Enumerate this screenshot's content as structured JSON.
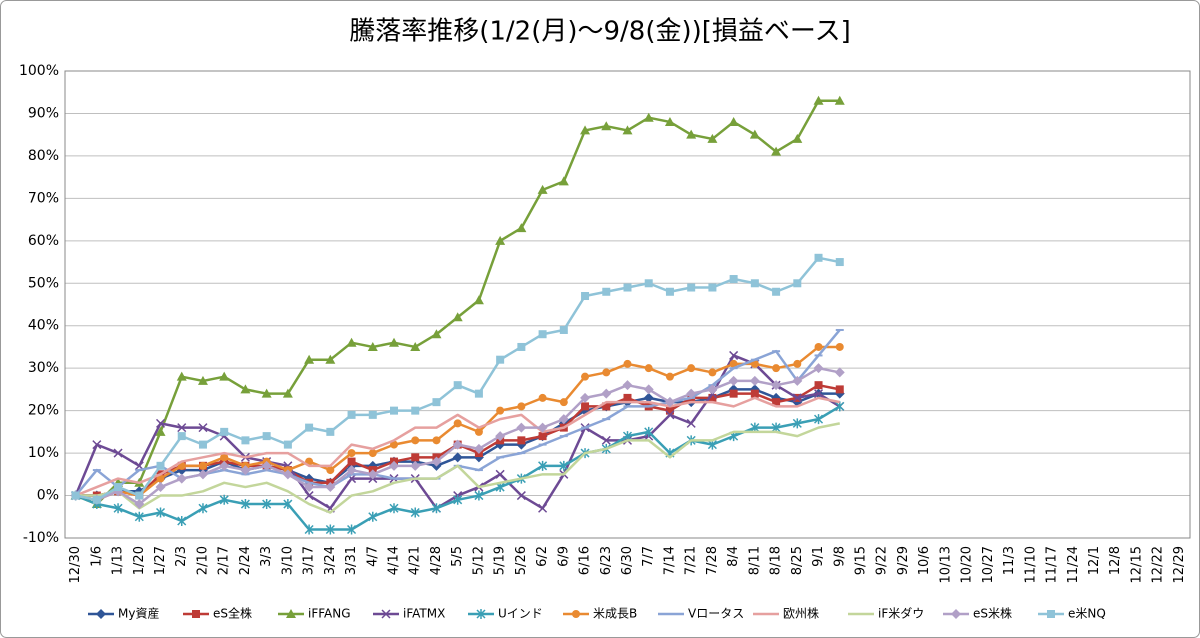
{
  "chart_data": {
    "type": "line",
    "title": "騰落率推移(1/2(月)～9/8(金))[損益ベース]",
    "categories": [
      "12/30",
      "1/6",
      "1/13",
      "1/20",
      "1/27",
      "2/3",
      "2/10",
      "2/17",
      "2/24",
      "3/3",
      "3/10",
      "3/17",
      "3/24",
      "3/31",
      "4/7",
      "4/14",
      "4/21",
      "4/28",
      "5/5",
      "5/12",
      "5/19",
      "5/26",
      "6/2",
      "6/9",
      "6/16",
      "6/23",
      "6/30",
      "7/7",
      "7/14",
      "7/21",
      "7/28",
      "8/4",
      "8/11",
      "8/18",
      "8/25",
      "9/1",
      "9/8",
      "9/15",
      "9/22",
      "9/29",
      "10/6",
      "10/13",
      "10/20",
      "10/27",
      "11/3",
      "11/10",
      "11/17",
      "11/24",
      "12/1",
      "12/8",
      "12/15",
      "12/22",
      "12/29"
    ],
    "ylim": [
      -10,
      100
    ],
    "yticks": [
      {
        "value": -10,
        "label": "-10%"
      },
      {
        "value": 0,
        "label": "0%"
      },
      {
        "value": 10,
        "label": "10%"
      },
      {
        "value": 20,
        "label": "20%"
      },
      {
        "value": 30,
        "label": "30%"
      },
      {
        "value": 40,
        "label": "40%"
      },
      {
        "value": 50,
        "label": "50%"
      },
      {
        "value": 60,
        "label": "60%"
      },
      {
        "value": 70,
        "label": "70%"
      },
      {
        "value": 80,
        "label": "80%"
      },
      {
        "value": 90,
        "label": "90%"
      },
      {
        "value": 100,
        "label": "100%"
      }
    ],
    "grid": true,
    "legend": "bottom",
    "series": [
      {
        "name": "My資産",
        "color": "#2f5597",
        "marker": "diamond",
        "values": [
          0,
          0,
          1,
          1,
          4,
          6,
          6,
          8,
          6,
          7,
          6,
          4,
          3,
          7,
          7,
          8,
          8,
          7,
          9,
          9,
          12,
          12,
          14,
          17,
          20,
          21,
          22,
          23,
          22,
          22,
          23,
          25,
          25,
          23,
          22,
          24,
          24,
          null,
          null,
          null,
          null,
          null,
          null,
          null,
          null,
          null,
          null,
          null,
          null,
          null,
          null,
          null,
          null
        ]
      },
      {
        "name": "eS全株",
        "color": "#be3b36",
        "marker": "square",
        "values": [
          0,
          0,
          1,
          0,
          5,
          7,
          7,
          8,
          7,
          7,
          6,
          3,
          3,
          8,
          6,
          8,
          9,
          9,
          12,
          10,
          13,
          13,
          14,
          16,
          21,
          21,
          23,
          21,
          20,
          23,
          23,
          24,
          24,
          22,
          23,
          26,
          25,
          null,
          null,
          null,
          null,
          null,
          null,
          null,
          null,
          null,
          null,
          null,
          null,
          null,
          null,
          null,
          null
        ]
      },
      {
        "name": "iFFANG",
        "color": "#77a03a",
        "marker": "triangle",
        "values": [
          0,
          -2,
          3,
          3,
          15,
          28,
          27,
          28,
          25,
          24,
          24,
          32,
          32,
          36,
          35,
          36,
          35,
          38,
          42,
          46,
          60,
          63,
          72,
          74,
          86,
          87,
          86,
          89,
          88,
          85,
          84,
          88,
          85,
          81,
          84,
          93,
          93,
          null,
          null,
          null,
          null,
          null,
          null,
          null,
          null,
          null,
          null,
          null,
          null,
          null,
          null,
          null,
          null
        ]
      },
      {
        "name": "iFATMX",
        "color": "#6d4a94",
        "marker": "x",
        "values": [
          0,
          12,
          10,
          7,
          17,
          16,
          16,
          14,
          9,
          8,
          7,
          0,
          -3,
          4,
          4,
          4,
          4,
          -3,
          0,
          2,
          5,
          0,
          -3,
          5,
          16,
          13,
          13,
          14,
          19,
          17,
          24,
          33,
          31,
          26,
          23,
          24,
          21,
          null,
          null,
          null,
          null,
          null,
          null,
          null,
          null,
          null,
          null,
          null,
          null,
          null,
          null,
          null,
          null
        ]
      },
      {
        "name": "Uインド",
        "color": "#3a9fb5",
        "marker": "star",
        "values": [
          0,
          -2,
          -3,
          -5,
          -4,
          -6,
          -3,
          -1,
          -2,
          -2,
          -2,
          -8,
          -8,
          -8,
          -5,
          -3,
          -4,
          -3,
          -1,
          0,
          2,
          4,
          7,
          7,
          10,
          11,
          14,
          15,
          10,
          13,
          12,
          14,
          16,
          16,
          17,
          18,
          21,
          null,
          null,
          null,
          null,
          null,
          null,
          null,
          null,
          null,
          null,
          null,
          null,
          null,
          null,
          null,
          null
        ]
      },
      {
        "name": "米成長B",
        "color": "#e98a31",
        "marker": "circle",
        "values": [
          0,
          -1,
          1,
          0,
          4,
          7,
          7,
          9,
          7,
          8,
          6,
          8,
          6,
          10,
          10,
          12,
          13,
          13,
          17,
          15,
          20,
          21,
          23,
          22,
          28,
          29,
          31,
          30,
          28,
          30,
          29,
          31,
          31,
          30,
          31,
          35,
          35,
          null,
          null,
          null,
          null,
          null,
          null,
          null,
          null,
          null,
          null,
          null,
          null,
          null,
          null,
          null,
          null
        ]
      },
      {
        "name": "Vロータス",
        "color": "#8aa4d6",
        "marker": "dash",
        "values": [
          0,
          6,
          2,
          6,
          7,
          4,
          5,
          6,
          5,
          6,
          5,
          3,
          2,
          5,
          5,
          4,
          4,
          4,
          7,
          6,
          9,
          10,
          12,
          14,
          16,
          18,
          21,
          21,
          22,
          23,
          26,
          30,
          32,
          34,
          27,
          33,
          39,
          null,
          null,
          null,
          null,
          null,
          null,
          null,
          null,
          null,
          null,
          null,
          null,
          null,
          null,
          null,
          null
        ]
      },
      {
        "name": "欧州株",
        "color": "#e6a09f",
        "marker": "none",
        "values": [
          0,
          2,
          4,
          3,
          5,
          8,
          9,
          10,
          9,
          10,
          10,
          7,
          7,
          12,
          11,
          13,
          16,
          16,
          19,
          16,
          18,
          19,
          15,
          16,
          19,
          22,
          22,
          22,
          21,
          22,
          22,
          21,
          23,
          21,
          21,
          23,
          22,
          null,
          null,
          null,
          null,
          null,
          null,
          null,
          null,
          null,
          null,
          null,
          null,
          null,
          null,
          null,
          null
        ]
      },
      {
        "name": "iF米ダウ",
        "color": "#c3d69b",
        "marker": "none",
        "values": [
          0,
          0,
          1,
          -3,
          0,
          0,
          1,
          3,
          2,
          3,
          1,
          -2,
          -4,
          0,
          1,
          3,
          4,
          4,
          7,
          2,
          3,
          4,
          5,
          5,
          10,
          11,
          13,
          13,
          9,
          13,
          13,
          15,
          15,
          15,
          14,
          16,
          17,
          null,
          null,
          null,
          null,
          null,
          null,
          null,
          null,
          null,
          null,
          null,
          null,
          null,
          null,
          null,
          null
        ]
      },
      {
        "name": "eS米株",
        "color": "#b1a0c7",
        "marker": "diamond",
        "values": [
          0,
          -1,
          1,
          -2,
          2,
          4,
          5,
          7,
          6,
          7,
          5,
          2,
          2,
          6,
          5,
          7,
          7,
          8,
          12,
          11,
          14,
          16,
          16,
          18,
          23,
          24,
          26,
          25,
          22,
          24,
          25,
          27,
          27,
          26,
          27,
          30,
          29,
          null,
          null,
          null,
          null,
          null,
          null,
          null,
          null,
          null,
          null,
          null,
          null,
          null,
          null,
          null,
          null
        ]
      },
      {
        "name": "e米NQ",
        "color": "#8fc3d8",
        "marker": "square",
        "values": [
          0,
          -1,
          2,
          0,
          7,
          14,
          12,
          15,
          13,
          14,
          12,
          16,
          15,
          19,
          19,
          20,
          20,
          22,
          26,
          24,
          32,
          35,
          38,
          39,
          47,
          48,
          49,
          50,
          48,
          49,
          49,
          51,
          50,
          48,
          50,
          56,
          55,
          null,
          null,
          null,
          null,
          null,
          null,
          null,
          null,
          null,
          null,
          null,
          null,
          null,
          null,
          null,
          null
        ]
      }
    ]
  }
}
